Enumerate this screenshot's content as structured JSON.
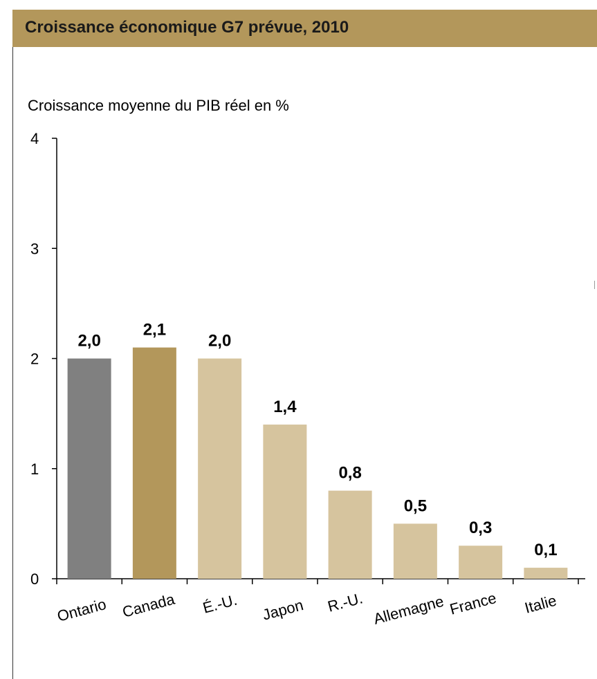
{
  "header": {
    "title": "Croissance économique G7 prévue, 2010"
  },
  "chart_data": {
    "type": "bar",
    "title": "Croissance économique G7 prévue, 2010",
    "ylabel": "Croissance moyenne du PIB réel en %",
    "xlabel": "",
    "ylim": [
      0,
      4
    ],
    "yticks": [
      0,
      1,
      2,
      3,
      4
    ],
    "grid": false,
    "legend": "none",
    "categories": [
      "Ontario",
      "Canada",
      "É.-U.",
      "Japon",
      "R.-U.",
      "Allemagne",
      "France",
      "Italie"
    ],
    "values": [
      2.0,
      2.1,
      2.0,
      1.4,
      0.8,
      0.5,
      0.3,
      0.1
    ],
    "data_labels": [
      "2,0",
      "2,1",
      "2,0",
      "1,4",
      "0,8",
      "0,5",
      "0,3",
      "0,1"
    ],
    "bar_colors": [
      "#808080",
      "#b3975b",
      "#d6c49e",
      "#d6c49e",
      "#d6c49e",
      "#d6c49e",
      "#d6c49e",
      "#d6c49e"
    ]
  }
}
